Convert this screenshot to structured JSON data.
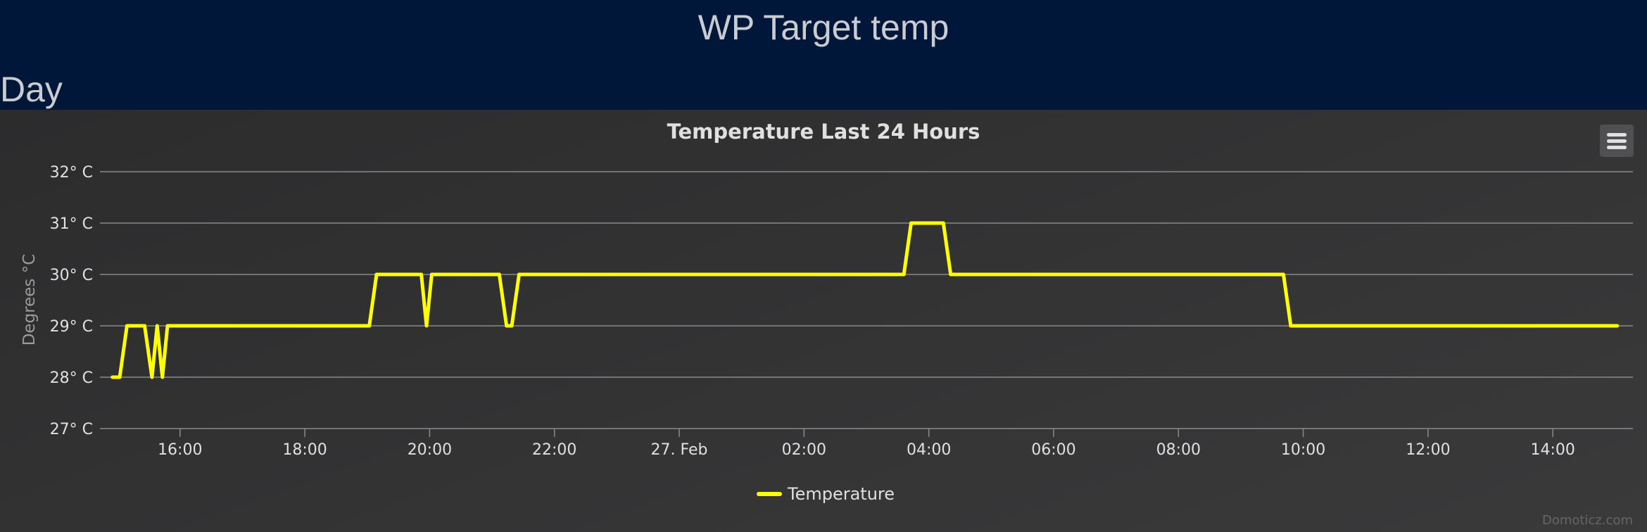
{
  "header": {
    "title": "WP Target temp",
    "section": "Day"
  },
  "menu_icon": "hamburger-menu-icon",
  "credit": "Domoticz.com",
  "colors": {
    "series": "#ffff00",
    "background": "#00173a",
    "panel": "#333334",
    "grid": "#8a8a8a",
    "text": "#e0e0e0"
  },
  "chart_data": {
    "type": "line",
    "title": "Temperature Last 24 Hours",
    "ylabel": "Degrees °C",
    "xlabel": "",
    "ylim": [
      27,
      32
    ],
    "yticks": [
      {
        "value": 27,
        "label": "27° C"
      },
      {
        "value": 28,
        "label": "28° C"
      },
      {
        "value": 29,
        "label": "29° C"
      },
      {
        "value": 30,
        "label": "30° C"
      },
      {
        "value": 31,
        "label": "31° C"
      },
      {
        "value": 32,
        "label": "32° C"
      }
    ],
    "xlim": [
      "2023-02-26 14:43",
      "2023-02-27 15:17"
    ],
    "xticks": [
      {
        "value": "2023-02-26 16:00",
        "label": "16:00"
      },
      {
        "value": "2023-02-26 18:00",
        "label": "18:00"
      },
      {
        "value": "2023-02-26 20:00",
        "label": "20:00"
      },
      {
        "value": "2023-02-26 22:00",
        "label": "22:00"
      },
      {
        "value": "2023-02-27 00:00",
        "label": "27. Feb"
      },
      {
        "value": "2023-02-27 02:00",
        "label": "02:00"
      },
      {
        "value": "2023-02-27 04:00",
        "label": "04:00"
      },
      {
        "value": "2023-02-27 06:00",
        "label": "06:00"
      },
      {
        "value": "2023-02-27 08:00",
        "label": "08:00"
      },
      {
        "value": "2023-02-27 10:00",
        "label": "10:00"
      },
      {
        "value": "2023-02-27 12:00",
        "label": "12:00"
      },
      {
        "value": "2023-02-27 14:00",
        "label": "14:00"
      }
    ],
    "grid": true,
    "legend": "bottom-center",
    "series": [
      {
        "name": "Temperature",
        "color": "#ffff00",
        "points": [
          [
            "2023-02-26 14:55",
            28
          ],
          [
            "2023-02-26 15:02",
            28
          ],
          [
            "2023-02-26 15:09",
            29
          ],
          [
            "2023-02-26 15:26",
            29
          ],
          [
            "2023-02-26 15:33",
            28
          ],
          [
            "2023-02-26 15:38",
            29
          ],
          [
            "2023-02-26 15:43",
            28
          ],
          [
            "2023-02-26 15:48",
            29
          ],
          [
            "2023-02-26 19:02",
            29
          ],
          [
            "2023-02-26 19:09",
            30
          ],
          [
            "2023-02-26 19:52",
            30
          ],
          [
            "2023-02-26 19:57",
            29
          ],
          [
            "2023-02-26 20:02",
            30
          ],
          [
            "2023-02-26 21:07",
            30
          ],
          [
            "2023-02-26 21:14",
            29
          ],
          [
            "2023-02-26 21:19",
            29
          ],
          [
            "2023-02-26 21:26",
            30
          ],
          [
            "2023-02-27 03:36",
            30
          ],
          [
            "2023-02-27 03:43",
            31
          ],
          [
            "2023-02-27 04:14",
            31
          ],
          [
            "2023-02-27 04:21",
            30
          ],
          [
            "2023-02-27 09:41",
            30
          ],
          [
            "2023-02-27 09:48",
            29
          ],
          [
            "2023-02-27 15:02",
            29
          ]
        ]
      }
    ]
  }
}
